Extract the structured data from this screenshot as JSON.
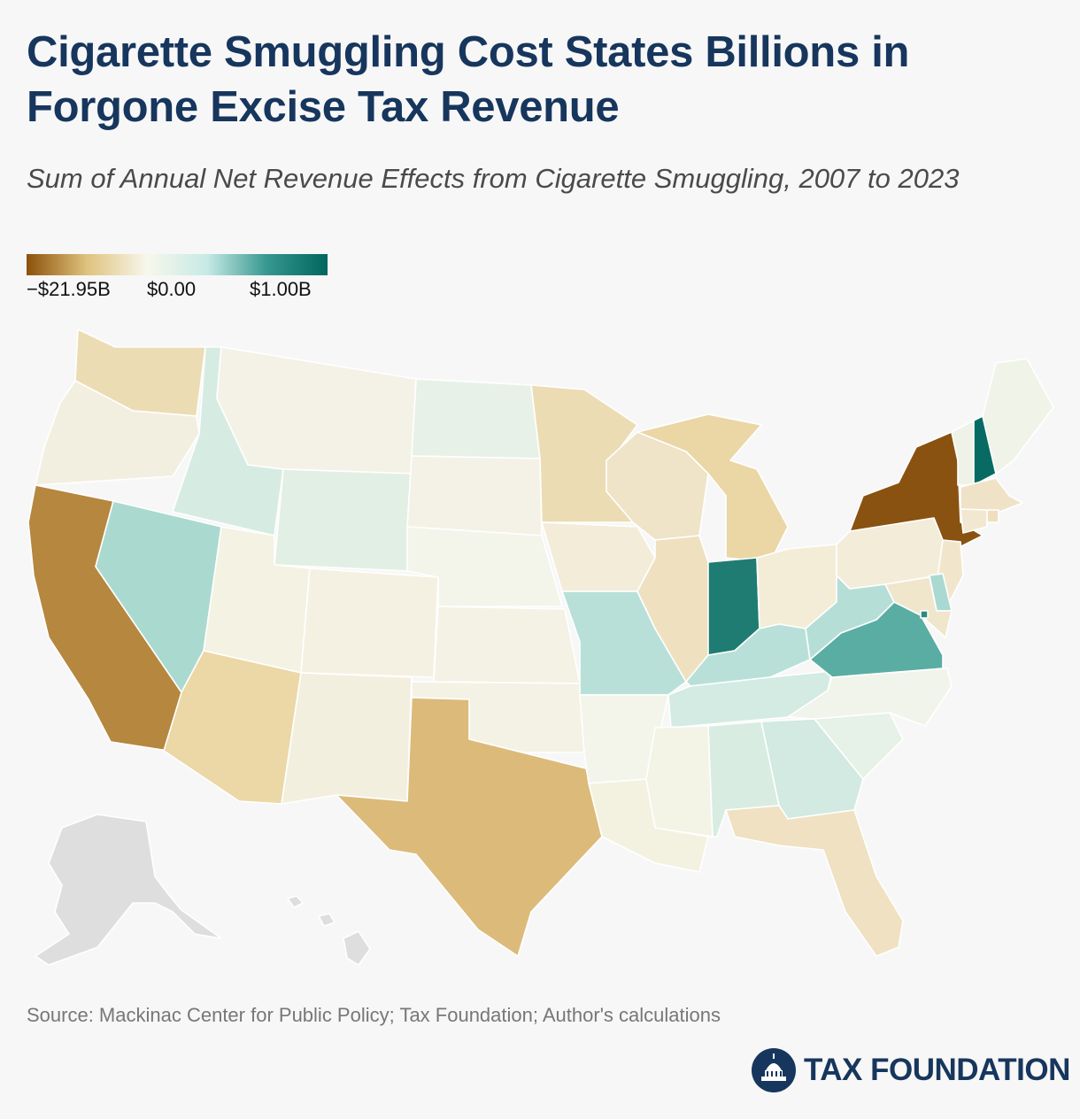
{
  "title": "Cigarette Smuggling Cost States Billions in Forgone Excise Tax Revenue",
  "subtitle": "Sum of Annual Net Revenue Effects from Cigarette Smuggling, 2007 to 2023",
  "legend": {
    "min_label": "−$21.95B",
    "mid_label": "$0.00",
    "max_label": "$1.00B",
    "gradient": [
      "#8c510a",
      "#dfc27d",
      "#f7f7ec",
      "#c7eae5",
      "#35978f",
      "#01665e"
    ]
  },
  "source": "Source: Mackinac Center for Public Policy; Tax Foundation; Author's calculations",
  "logo_text": "TAX FOUNDATION",
  "colors": {
    "title": "#17365d",
    "no_data": "#dedede",
    "border": "#ffffff"
  },
  "chart_data": {
    "type": "choropleth",
    "unit": "net revenue effect (sum 2007-2023)",
    "states": [
      {
        "code": "WA",
        "fill": "#ecdcb4"
      },
      {
        "code": "OR",
        "fill": "#f3efe0"
      },
      {
        "code": "CA",
        "fill": "#b5873f"
      },
      {
        "code": "NV",
        "fill": "#aad9cf"
      },
      {
        "code": "ID",
        "fill": "#d6ece3"
      },
      {
        "code": "MT",
        "fill": "#f4f2e6"
      },
      {
        "code": "WY",
        "fill": "#e2efe5"
      },
      {
        "code": "UT",
        "fill": "#f4f2e3"
      },
      {
        "code": "AZ",
        "fill": "#ecd7a6"
      },
      {
        "code": "CO",
        "fill": "#f4f1e2"
      },
      {
        "code": "NM",
        "fill": "#f3efdf"
      },
      {
        "code": "ND",
        "fill": "#e8f1e8"
      },
      {
        "code": "SD",
        "fill": "#f4f2e6"
      },
      {
        "code": "NE",
        "fill": "#f3f4ea"
      },
      {
        "code": "KS",
        "fill": "#f3f2e4"
      },
      {
        "code": "OK",
        "fill": "#f4f2e4"
      },
      {
        "code": "TX",
        "fill": "#dcba79"
      },
      {
        "code": "MN",
        "fill": "#ecdcb4"
      },
      {
        "code": "IA",
        "fill": "#f3ecd9"
      },
      {
        "code": "MO",
        "fill": "#b8e0d9"
      },
      {
        "code": "AR",
        "fill": "#f3f4ea"
      },
      {
        "code": "LA",
        "fill": "#f3f2e0"
      },
      {
        "code": "WI",
        "fill": "#efe3c8"
      },
      {
        "code": "IL",
        "fill": "#efe0c0"
      },
      {
        "code": "MI",
        "fill": "#ebd6a5"
      },
      {
        "code": "IN",
        "fill": "#1f7c73"
      },
      {
        "code": "OH",
        "fill": "#f3edd8"
      },
      {
        "code": "KY",
        "fill": "#b8e0d8"
      },
      {
        "code": "TN",
        "fill": "#d3ebe2"
      },
      {
        "code": "MS",
        "fill": "#f3f3e6"
      },
      {
        "code": "AL",
        "fill": "#d8ece2"
      },
      {
        "code": "GA",
        "fill": "#d2eae1"
      },
      {
        "code": "FL",
        "fill": "#efe1c1"
      },
      {
        "code": "SC",
        "fill": "#e6f1e7"
      },
      {
        "code": "NC",
        "fill": "#f0f4ea"
      },
      {
        "code": "VA",
        "fill": "#5aada3"
      },
      {
        "code": "WV",
        "fill": "#b5dfd6"
      },
      {
        "code": "PA",
        "fill": "#f3ecd8"
      },
      {
        "code": "NY",
        "fill": "#8a5210"
      },
      {
        "code": "VT",
        "fill": "#eff2e6"
      },
      {
        "code": "NH",
        "fill": "#086b63"
      },
      {
        "code": "ME",
        "fill": "#f0f3e8"
      },
      {
        "code": "MA",
        "fill": "#efe2c7"
      },
      {
        "code": "CT",
        "fill": "#f2e8d2"
      },
      {
        "code": "RI",
        "fill": "#efdfbf"
      },
      {
        "code": "NJ",
        "fill": "#f1e6cc"
      },
      {
        "code": "DE",
        "fill": "#a9d9d1"
      },
      {
        "code": "MD",
        "fill": "#f0e6cc"
      },
      {
        "code": "DC",
        "fill": "#2a8b82"
      },
      {
        "code": "AK",
        "fill": "#dedede"
      },
      {
        "code": "HI",
        "fill": "#dedede"
      }
    ]
  }
}
